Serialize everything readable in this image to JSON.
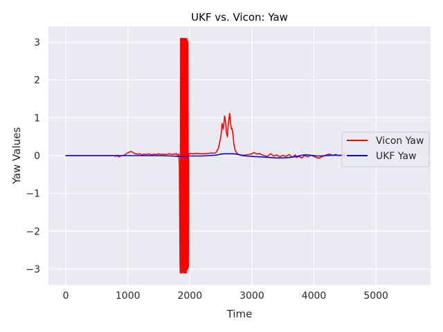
{
  "chart_data": {
    "type": "line",
    "title": "UKF vs. Vicon: Yaw",
    "xlabel": "Time",
    "ylabel": "Yaw Values",
    "xlim": [
      -280,
      5880
    ],
    "ylim": [
      -3.42,
      3.42
    ],
    "xticks": [
      0,
      1000,
      2000,
      3000,
      4000,
      5000
    ],
    "xtick_labels": [
      "0",
      "1000",
      "2000",
      "3000",
      "4000",
      "5000"
    ],
    "yticks": [
      3,
      2,
      1,
      0,
      -1,
      -2,
      -3
    ],
    "ytick_labels": [
      "3",
      "2",
      "1",
      "0",
      "−1",
      "−2",
      "−3"
    ],
    "grid": true,
    "legend_position": "center-right",
    "background": "#eaeaf2",
    "series": [
      {
        "name": "Vicon Yaw",
        "color": "#ff0000",
        "x": [
          0,
          200,
          400,
          600,
          780,
          800,
          830,
          850,
          880,
          920,
          950,
          1000,
          1050,
          1080,
          1100,
          1150,
          1200,
          1230,
          1260,
          1300,
          1340,
          1380,
          1420,
          1460,
          1500,
          1540,
          1580,
          1620,
          1660,
          1700,
          1720,
          1740,
          1760,
          1780,
          1800,
          1820,
          1830,
          1840,
          1845,
          1850,
          1855,
          1860,
          1865,
          1870,
          1875,
          1880,
          1885,
          1890,
          1895,
          1900,
          1905,
          1910,
          1915,
          1920,
          1925,
          1930,
          1935,
          1940,
          1945,
          1950,
          1955,
          1960,
          1965,
          1970,
          1975,
          1980,
          2000,
          2050,
          2100,
          2200,
          2300,
          2350,
          2400,
          2430,
          2460,
          2480,
          2500,
          2520,
          2540,
          2560,
          2575,
          2590,
          2605,
          2620,
          2640,
          2660,
          2670,
          2680,
          2695,
          2710,
          2730,
          2750,
          2770,
          2790,
          2820,
          2860,
          2900,
          2950,
          3000,
          3030,
          3060,
          3090,
          3120,
          3150,
          3200,
          3250,
          3300,
          3350,
          3400,
          3450,
          3500,
          3550,
          3600,
          3650,
          3700,
          3720,
          3760,
          3800,
          3850,
          3900,
          3950,
          4000,
          4040,
          4080,
          4120,
          4160,
          4200,
          4250,
          4300,
          4350,
          4400,
          4450,
          4500
        ],
        "y": [
          0.0,
          0.0,
          0.0,
          0.0,
          0.0,
          -0.02,
          0.01,
          -0.03,
          -0.01,
          0.0,
          0.02,
          0.08,
          0.11,
          0.09,
          0.06,
          0.04,
          0.05,
          0.02,
          0.04,
          0.03,
          0.05,
          0.02,
          0.04,
          0.03,
          0.05,
          0.03,
          0.04,
          0.03,
          0.05,
          0.04,
          0.02,
          0.05,
          0.03,
          0.06,
          0.01,
          0.04,
          -0.2,
          -2.8,
          -3.1,
          3.1,
          -3.1,
          3.1,
          -3.1,
          3.1,
          -3.1,
          3.1,
          -3.1,
          3.1,
          -3.05,
          3.1,
          -3.1,
          3.1,
          -3.1,
          3.1,
          -3.1,
          3.1,
          -3.1,
          3.08,
          -3.1,
          3.1,
          -3.0,
          3.05,
          -3.0,
          3.0,
          -2.95,
          0.05,
          0.06,
          0.05,
          0.06,
          0.05,
          0.06,
          0.07,
          0.06,
          0.1,
          0.2,
          0.35,
          0.5,
          0.85,
          0.7,
          1.05,
          0.9,
          0.6,
          0.5,
          0.85,
          1.12,
          0.8,
          0.7,
          0.72,
          0.55,
          0.3,
          0.15,
          0.08,
          0.05,
          0.03,
          0.02,
          0.01,
          0.02,
          0.03,
          0.05,
          0.08,
          0.06,
          0.04,
          0.06,
          0.03,
          0.0,
          -0.02,
          0.05,
          -0.01,
          0.02,
          -0.03,
          0.01,
          -0.02,
          0.03,
          -0.04,
          0.02,
          -0.05,
          -0.02,
          -0.06,
          0.0,
          -0.03,
          0.01,
          -0.02,
          -0.05,
          -0.07,
          -0.03,
          -0.01,
          0.02,
          0.04,
          0.01,
          0.03,
          0.0,
          0.02,
          0.05
        ]
      },
      {
        "name": "UKF Yaw",
        "color": "#0000ff",
        "x": [
          0,
          500,
          1000,
          1500,
          1700,
          1800,
          1900,
          2000,
          2100,
          2200,
          2300,
          2400,
          2450,
          2500,
          2550,
          2600,
          2700,
          2750,
          2800,
          2850,
          2900,
          3000,
          3100,
          3200,
          3300,
          3400,
          3500,
          3600,
          3700,
          3750,
          3800,
          3850,
          3900,
          3950,
          4000,
          4050,
          4100,
          4200,
          4300,
          4400,
          4500
        ],
        "y": [
          0.0,
          0.0,
          0.0,
          0.0,
          -0.01,
          -0.02,
          -0.02,
          -0.01,
          -0.01,
          -0.01,
          0.0,
          0.01,
          0.02,
          0.04,
          0.05,
          0.05,
          0.05,
          0.04,
          0.02,
          0.0,
          -0.01,
          -0.02,
          -0.03,
          -0.04,
          -0.05,
          -0.06,
          -0.06,
          -0.05,
          -0.03,
          -0.01,
          0.01,
          0.02,
          0.02,
          0.01,
          0.0,
          -0.01,
          -0.01,
          0.0,
          0.01,
          0.01,
          0.0
        ]
      }
    ]
  }
}
